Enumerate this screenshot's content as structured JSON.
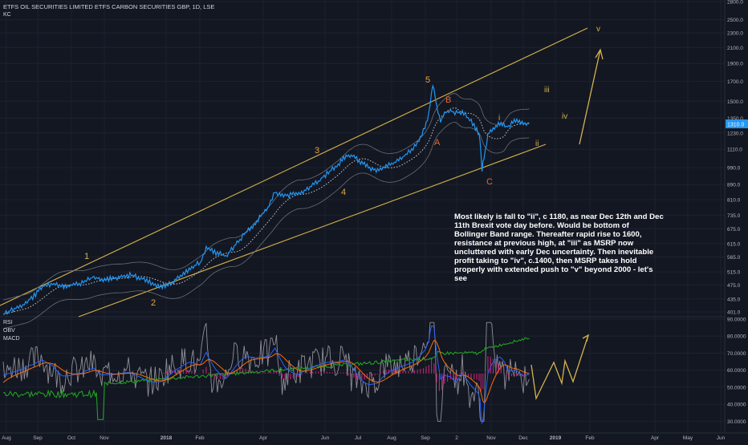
{
  "header": {
    "title": "ETFS OIL SECURITIES LIMITED ETFS CARBON SECURITIES GBP, 1D, LSE",
    "kc_label": "KC",
    "rsi_label": "RSI",
    "obv_label": "OBV",
    "macd_label": "MACD",
    "last_price": "1310.0"
  },
  "annotation": "Most likely is fall to \"ii\", c 1180, as near Dec 12th and Dec 11th Brexit vote day before.  Would be bottom of Bollinger Band range. Thereafter rapid rise to 1600, resistance at previous high,  at \"iii\" as MSRP now uncluttered with early Dec uncertainty. Then inevitable profit taking to \"iv\", c.1400, then MSRP takes hold properly with extended push to \"v\" beyond 2000 - let's see",
  "colors": {
    "background": "#131722",
    "price": "#2196f3",
    "channel": "#d4b24c",
    "wave_orange": "#e8a33d",
    "wave_correction": "#e8682f",
    "bands": "#6a6d78",
    "rsi": "#8f8f96",
    "obv": "#21a021",
    "macd": "#2962ff",
    "signal": "#ff6d00",
    "hist": "#b4236f"
  },
  "chart_data": [
    {
      "type": "line",
      "title": "ETFS OIL SECURITIES LIMITED ETFS CARBON SECURITIES GBP, 1D, LSE",
      "scale": "log",
      "ylim": [
        395,
        2800
      ],
      "y_ticks": [
        "2800.0",
        "2500.0",
        "2300.0",
        "2100.0",
        "1900.0",
        "1700.0",
        "1500.0",
        "1350.0",
        "1230.0",
        "1110.0",
        "990.0",
        "890.0",
        "810.0",
        "735.0",
        "675.0",
        "615.0",
        "565.0",
        "515.0",
        "475.0",
        "435.0",
        "401.0"
      ],
      "x_ticks": [
        "Aug",
        "Sep",
        "Oct",
        "Nov",
        "2018",
        "Feb",
        "Apr",
        "Jun",
        "Jul",
        "Aug",
        "Sep",
        "2",
        "Nov",
        "Dec",
        "2019",
        "Feb",
        "Apr",
        "May",
        "Jun"
      ],
      "last_value": 1310,
      "series": [
        {
          "values": [
            [
              0,
              395
            ],
            [
              1,
              420
            ],
            [
              1.5,
              440
            ],
            [
              2,
              470
            ],
            [
              2.5,
              480
            ],
            [
              3,
              470
            ],
            [
              3.5,
              475
            ],
            [
              4,
              480
            ],
            [
              4.6,
              500
            ],
            [
              5,
              490
            ],
            [
              5.5,
              495
            ],
            [
              6,
              500
            ],
            [
              6.5,
              505
            ],
            [
              7,
              495
            ],
            [
              7.5,
              480
            ],
            [
              8,
              470
            ],
            [
              8.5,
              480
            ],
            [
              9,
              500
            ],
            [
              9.5,
              530
            ],
            [
              10,
              545
            ],
            [
              10.3,
              600
            ],
            [
              10.8,
              580
            ],
            [
              11.3,
              570
            ],
            [
              11.8,
              610
            ],
            [
              12.3,
              660
            ],
            [
              12.8,
              700
            ],
            [
              13.5,
              780
            ],
            [
              13.8,
              850
            ],
            [
              14.3,
              830
            ],
            [
              15,
              840
            ],
            [
              15.5,
              870
            ],
            [
              16,
              910
            ],
            [
              16.5,
              960
            ],
            [
              17,
              1010
            ],
            [
              17.4,
              1070
            ],
            [
              17.8,
              1060
            ],
            [
              18.2,
              1020
            ],
            [
              18.6,
              990
            ],
            [
              19,
              970
            ],
            [
              19.5,
              1000
            ],
            [
              20,
              1030
            ],
            [
              20.5,
              1080
            ],
            [
              20.8,
              1120
            ],
            [
              21.1,
              1180
            ],
            [
              21.4,
              1270
            ],
            [
              21.6,
              1380
            ],
            [
              21.8,
              1680
            ],
            [
              22,
              1460
            ],
            [
              22.2,
              1330
            ],
            [
              22.4,
              1390
            ],
            [
              22.7,
              1420
            ],
            [
              23,
              1390
            ],
            [
              23.3,
              1410
            ],
            [
              23.6,
              1350
            ],
            [
              23.9,
              1290
            ],
            [
              24.1,
              1240
            ],
            [
              24.2,
              1180
            ],
            [
              24.3,
              980
            ],
            [
              24.4,
              1050
            ],
            [
              24.6,
              1220
            ],
            [
              24.8,
              1260
            ],
            [
              25.2,
              1300
            ],
            [
              25.6,
              1280
            ],
            [
              26,
              1330
            ],
            [
              26.4,
              1300
            ],
            [
              26.7,
              1310
            ]
          ]
        }
      ],
      "labels": {
        "wave_1": "1",
        "wave_2": "2",
        "wave_3": "3",
        "wave_4": "4",
        "wave_5": "5",
        "corr_a": "A",
        "corr_b": "B",
        "corr_c": "C",
        "proj_i": "i",
        "proj_ii": "ii",
        "proj_iii": "iii",
        "proj_iv": "iv",
        "proj_v": "v"
      }
    },
    {
      "type": "line",
      "title": "RSI / OBV / MACD",
      "ylim": [
        25,
        90
      ],
      "y_ticks": [
        "90.0000",
        "80.0000",
        "70.0000",
        "60.0000",
        "50.0000",
        "40.0000",
        "30.0000"
      ],
      "x_ticks": [
        "Aug",
        "Sep",
        "Oct",
        "Nov",
        "2018",
        "Feb",
        "Apr",
        "Jun",
        "Jul",
        "Aug",
        "Sep",
        "2",
        "Nov",
        "Dec",
        "2019",
        "Feb",
        "Apr",
        "May",
        "Jun"
      ]
    }
  ]
}
